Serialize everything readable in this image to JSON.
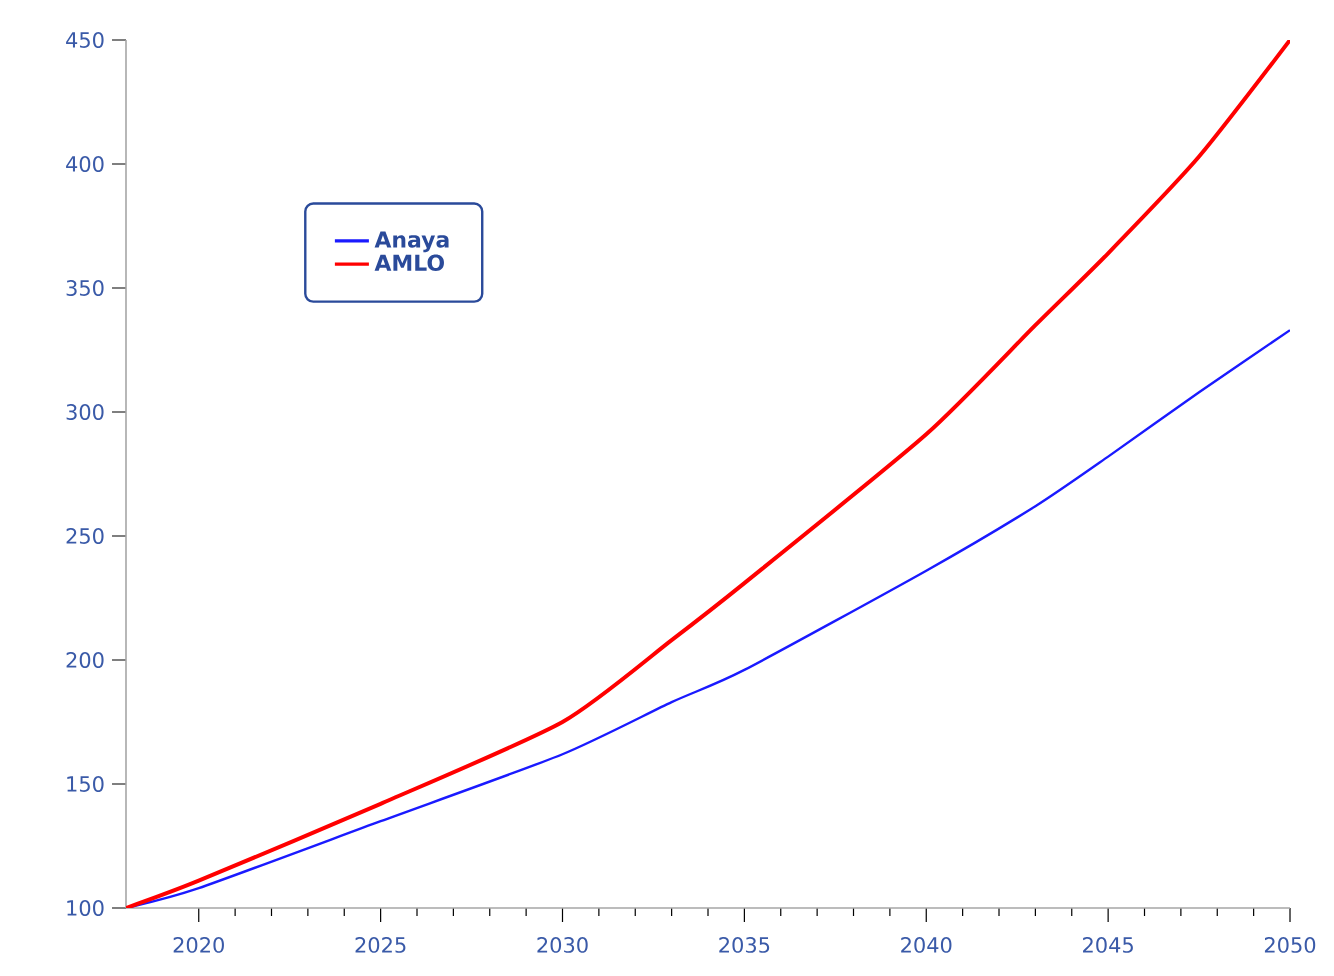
{
  "chart_data": {
    "type": "line",
    "x": [
      2018,
      2020,
      2025,
      2030,
      2033,
      2035,
      2040,
      2043,
      2045,
      2047.5,
      2050
    ],
    "series": [
      {
        "name": "Anaya",
        "color": "#1a1aff",
        "values": [
          100,
          108,
          135,
          162,
          183,
          196,
          236,
          262,
          282,
          308,
          333
        ]
      },
      {
        "name": "AMLO",
        "color": "#ff0000",
        "values": [
          100,
          111,
          142,
          175,
          208,
          231,
          291,
          335,
          364,
          403,
          450
        ]
      }
    ],
    "xlim": [
      2018,
      2050
    ],
    "xticks": [
      2020,
      2025,
      2030,
      2035,
      2040,
      2045,
      2050
    ],
    "ylim": [
      100,
      450
    ],
    "yticks": [
      100,
      150,
      200,
      250,
      300,
      350,
      400,
      450
    ],
    "grid": false,
    "legend": "top left",
    "marker": "none",
    "line_style": "solid"
  }
}
